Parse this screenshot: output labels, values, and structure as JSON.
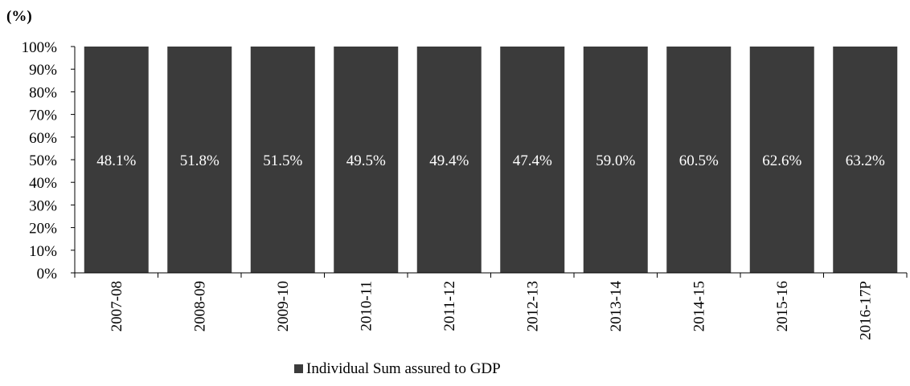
{
  "chart_data": {
    "type": "bar",
    "stacked": "100%",
    "unit_label": "(%)",
    "title": "",
    "xlabel": "",
    "ylabel": "",
    "ylim": [
      0,
      100
    ],
    "yticks": [
      0,
      10,
      20,
      30,
      40,
      50,
      60,
      70,
      80,
      90,
      100
    ],
    "ytick_labels": [
      "0%",
      "10%",
      "20%",
      "30%",
      "40%",
      "50%",
      "60%",
      "70%",
      "80%",
      "90%",
      "100%"
    ],
    "categories": [
      "2007-08",
      "2008-09",
      "2009-10",
      "2010-11",
      "2011-12",
      "2012-13",
      "2013-14",
      "2014-15",
      "2015-16",
      "2016-17P"
    ],
    "series": [
      {
        "name": "Individual Sum assured to GDP",
        "values": [
          48.1,
          51.8,
          51.5,
          49.5,
          49.4,
          47.4,
          59.0,
          60.5,
          62.6,
          63.2
        ],
        "data_labels": [
          "48.1%",
          "51.8%",
          "51.5%",
          "49.5%",
          "49.4%",
          "47.4%",
          "59.0%",
          "60.5%",
          "62.6%",
          "63.2%"
        ],
        "color": "#3b3b3b"
      }
    ],
    "grid": false,
    "legend": {
      "position": "bottom",
      "entries": [
        "Individual Sum assured to GDP"
      ]
    }
  }
}
